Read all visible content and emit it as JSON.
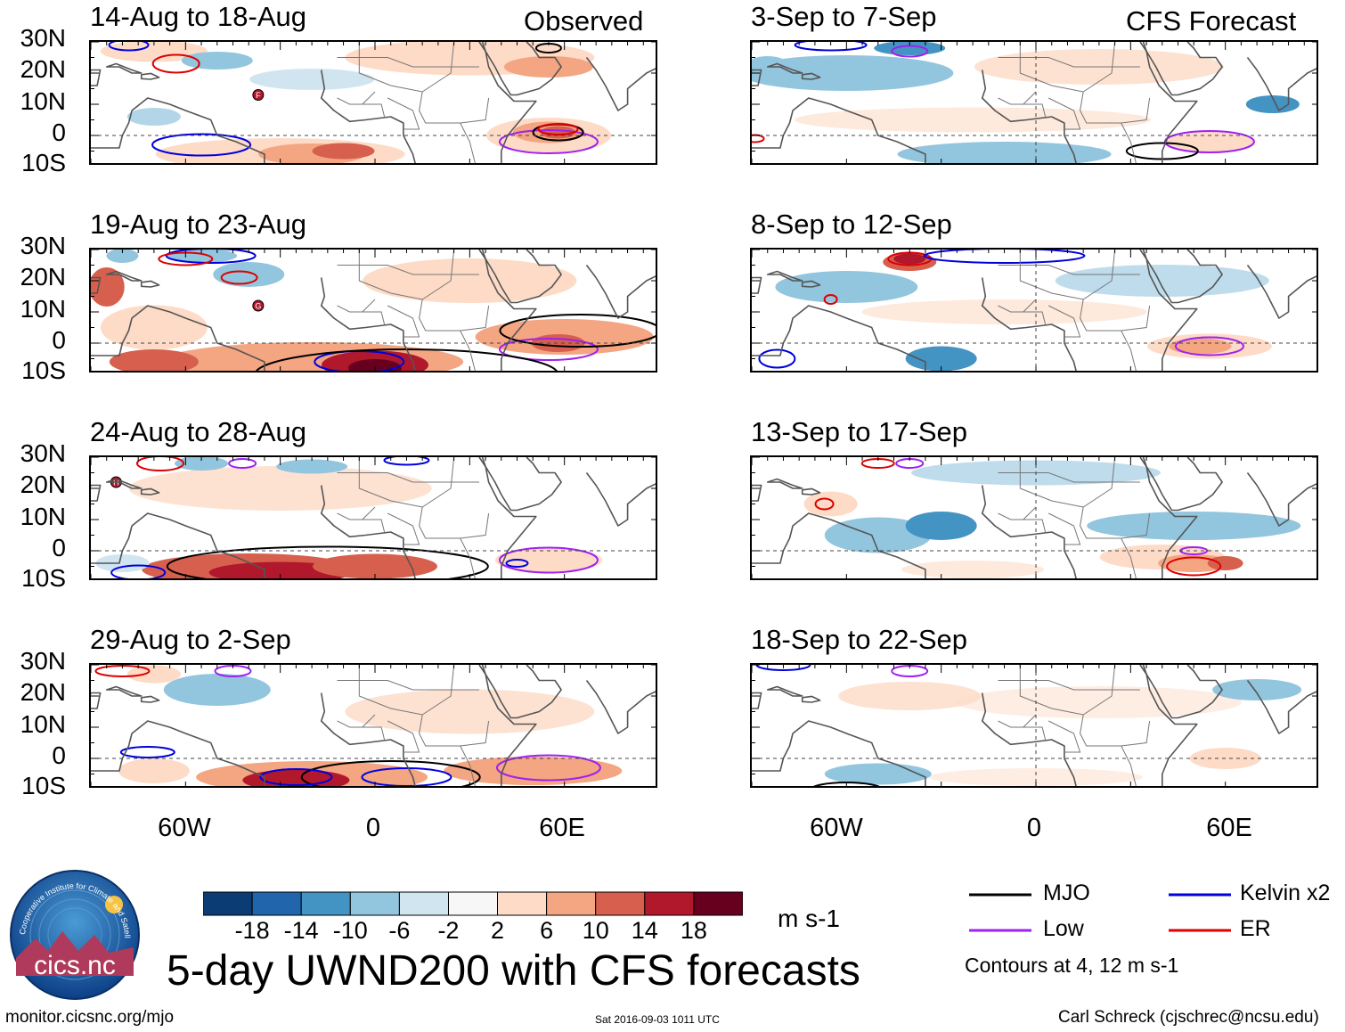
{
  "column_headers": {
    "left": "Observed",
    "right": "CFS Forecast"
  },
  "panels": {
    "left": [
      {
        "title": "14-Aug to 18-Aug"
      },
      {
        "title": "19-Aug to 23-Aug"
      },
      {
        "title": "24-Aug to 28-Aug"
      },
      {
        "title": "29-Aug to 2-Sep"
      }
    ],
    "right": [
      {
        "title": "3-Sep to 7-Sep"
      },
      {
        "title": "8-Sep to 12-Sep"
      },
      {
        "title": "13-Sep to 17-Sep"
      },
      {
        "title": "18-Sep to 22-Sep"
      }
    ]
  },
  "lat_labels": [
    "30N",
    "20N",
    "10N",
    "0",
    "10S"
  ],
  "lon_labels": [
    "60W",
    "0",
    "60E"
  ],
  "colorbar": {
    "colors": [
      "#0b3c73",
      "#2166ac",
      "#4393c3",
      "#92c5de",
      "#d1e5f0",
      "#f7f7f7",
      "#fddbc7",
      "#f4a582",
      "#d6604d",
      "#b2182b",
      "#67001f"
    ],
    "tick_labels": [
      "-18",
      "-14",
      "-10",
      "-6",
      "-2",
      "2",
      "6",
      "10",
      "14",
      "18"
    ],
    "units": "m s-1"
  },
  "main_title": "5-day UWND200 with CFS forecasts",
  "legend": {
    "items": [
      {
        "label": "MJO",
        "color": "#000000"
      },
      {
        "label": "Kelvin x2",
        "color": "#0000dd"
      },
      {
        "label": "Low",
        "color": "#a020f0"
      },
      {
        "label": "ER",
        "color": "#dd0000"
      }
    ],
    "note": "Contours at 4, 12 m s-1"
  },
  "storm_markers": [
    {
      "letter": "F"
    },
    {
      "letter": "G"
    },
    {
      "letter": "H"
    }
  ],
  "logo": {
    "arc_text": "Cooperative Institute for Climate and Satellites",
    "name": "cics.nc"
  },
  "footer": {
    "url": "monitor.cicsnc.org/mjo",
    "timestamp": "Sat 2016-09-03 1011 UTC",
    "credit": "Carl Schreck (cjschrec@ncsu.edu)"
  }
}
